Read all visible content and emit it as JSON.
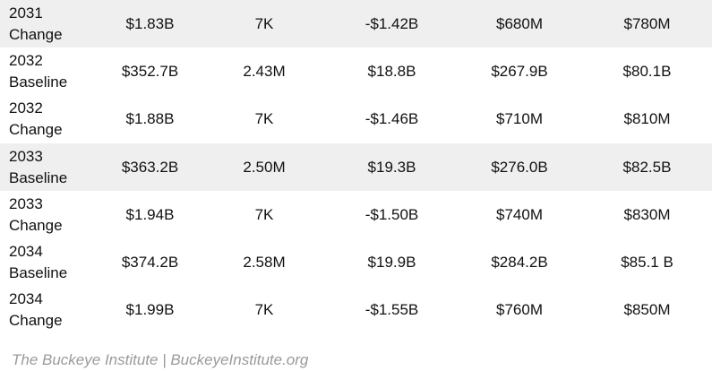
{
  "table": {
    "rows": [
      {
        "year": "2031",
        "kind": "Change",
        "cells": [
          "$1.83B",
          "7K",
          "-$1.42B",
          "$680M",
          "$780M"
        ],
        "shaded": true
      },
      {
        "year": "2032",
        "kind": "Baseline",
        "cells": [
          "$352.7B",
          "2.43M",
          "$18.8B",
          "$267.9B",
          "$80.1B"
        ],
        "shaded": false
      },
      {
        "year": "2032",
        "kind": "Change",
        "cells": [
          "$1.88B",
          "7K",
          "-$1.46B",
          "$710M",
          "$810M"
        ],
        "shaded": false
      },
      {
        "year": "2033",
        "kind": "Baseline",
        "cells": [
          "$363.2B",
          "2.50M",
          "$19.3B",
          "$276.0B",
          "$82.5B"
        ],
        "shaded": true
      },
      {
        "year": "2033",
        "kind": "Change",
        "cells": [
          "$1.94B",
          "7K",
          "-$1.50B",
          "$740M",
          "$830M"
        ],
        "shaded": false
      },
      {
        "year": "2034",
        "kind": "Baseline",
        "cells": [
          "$374.2B",
          "2.58M",
          "$19.9B",
          "$284.2B",
          "$85.1 B"
        ],
        "shaded": false
      },
      {
        "year": "2034",
        "kind": "Change",
        "cells": [
          "$1.99B",
          "7K",
          "-$1.55B",
          "$760M",
          "$850M"
        ],
        "shaded": false
      }
    ]
  },
  "source_note": "The Buckeye Institute | BuckeyeInstitute.org",
  "colors": {
    "row_shade": "#efefef",
    "source_text": "#9a9a9a"
  }
}
